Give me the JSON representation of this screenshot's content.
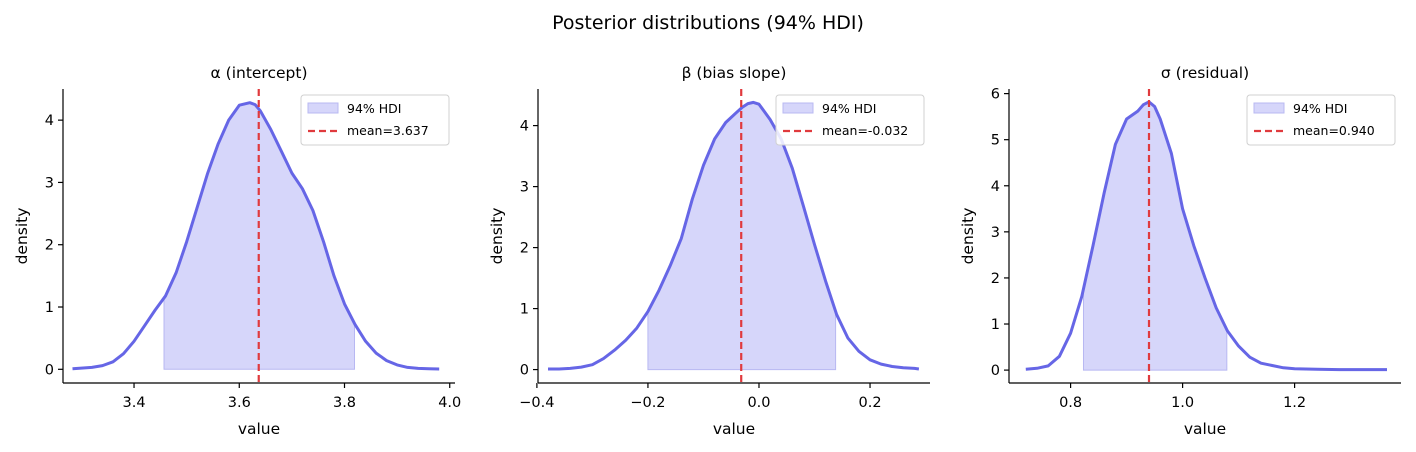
{
  "figure": {
    "title": "Posterior distributions (94% HDI)"
  },
  "colors": {
    "curve": "#6666e6",
    "hdi_fill": "#d6d6fa",
    "hdi_edge": "#b8b8f2",
    "mean_line": "#e03a3e",
    "axis": "#000000"
  },
  "chart_data": [
    {
      "type": "line",
      "title": "α (intercept)",
      "xlabel": "value",
      "ylabel": "density",
      "xlim": [
        3.265,
        4.01
      ],
      "ylim": [
        -0.22,
        4.5
      ],
      "xticks": [
        3.4,
        3.6,
        3.8,
        4.0
      ],
      "xtick_labels": [
        "3.4",
        "3.6",
        "3.8",
        "4.0"
      ],
      "yticks": [
        0,
        1,
        2,
        3,
        4
      ],
      "ytick_labels": [
        "0",
        "1",
        "2",
        "3",
        "4"
      ],
      "hdi": [
        3.457,
        3.819
      ],
      "mean": 3.637,
      "legend": {
        "position": "upper right",
        "entries": [
          "94% HDI",
          "mean=3.637"
        ]
      },
      "series": [
        {
          "x": [
            3.283,
            3.3,
            3.32,
            3.34,
            3.36,
            3.38,
            3.4,
            3.42,
            3.44,
            3.46,
            3.48,
            3.5,
            3.52,
            3.54,
            3.56,
            3.58,
            3.6,
            3.62,
            3.63,
            3.64,
            3.66,
            3.68,
            3.7,
            3.72,
            3.74,
            3.76,
            3.78,
            3.8,
            3.82,
            3.84,
            3.86,
            3.88,
            3.9,
            3.92,
            3.94,
            3.96,
            3.98
          ],
          "y": [
            0.01,
            0.02,
            0.03,
            0.06,
            0.12,
            0.25,
            0.45,
            0.7,
            0.95,
            1.18,
            1.55,
            2.05,
            2.6,
            3.15,
            3.62,
            4.0,
            4.24,
            4.28,
            4.25,
            4.15,
            3.85,
            3.5,
            3.15,
            2.9,
            2.55,
            2.05,
            1.5,
            1.05,
            0.72,
            0.45,
            0.26,
            0.14,
            0.07,
            0.03,
            0.015,
            0.008,
            0.005
          ]
        }
      ]
    },
    {
      "type": "line",
      "title": "β (bias slope)",
      "xlabel": "value",
      "ylabel": "density",
      "xlim": [
        -0.398,
        0.308
      ],
      "ylim": [
        -0.22,
        4.6
      ],
      "xticks": [
        -0.4,
        -0.2,
        0.0,
        0.2
      ],
      "xtick_labels": [
        "−0.4",
        "−0.2",
        "0.0",
        "0.2"
      ],
      "yticks": [
        0,
        1,
        2,
        3,
        4
      ],
      "ytick_labels": [
        "0",
        "1",
        "2",
        "3",
        "4"
      ],
      "hdi": [
        -0.2,
        0.138
      ],
      "mean": -0.032,
      "legend": {
        "position": "upper right",
        "entries": [
          "94% HDI",
          "mean=-0.032"
        ]
      },
      "series": [
        {
          "x": [
            -0.38,
            -0.36,
            -0.34,
            -0.32,
            -0.3,
            -0.28,
            -0.26,
            -0.24,
            -0.22,
            -0.2,
            -0.18,
            -0.16,
            -0.14,
            -0.12,
            -0.1,
            -0.08,
            -0.06,
            -0.04,
            -0.03,
            -0.02,
            -0.01,
            0.0,
            0.02,
            0.04,
            0.06,
            0.08,
            0.1,
            0.12,
            0.14,
            0.16,
            0.18,
            0.2,
            0.22,
            0.24,
            0.26,
            0.28,
            0.288
          ],
          "y": [
            0.01,
            0.01,
            0.02,
            0.04,
            0.08,
            0.18,
            0.32,
            0.48,
            0.68,
            0.95,
            1.3,
            1.7,
            2.15,
            2.8,
            3.35,
            3.78,
            4.05,
            4.22,
            4.3,
            4.36,
            4.38,
            4.35,
            4.1,
            3.78,
            3.3,
            2.68,
            2.05,
            1.45,
            0.9,
            0.52,
            0.3,
            0.16,
            0.09,
            0.05,
            0.03,
            0.02,
            0.01
          ]
        }
      ]
    },
    {
      "type": "line",
      "title": "σ (residual)",
      "xlabel": "value",
      "ylabel": "density",
      "xlim": [
        0.69,
        1.39
      ],
      "ylim": [
        -0.28,
        6.1
      ],
      "xticks": [
        0.8,
        1.0,
        1.2
      ],
      "xtick_labels": [
        "0.8",
        "1.0",
        "1.2"
      ],
      "yticks": [
        0,
        1,
        2,
        3,
        4,
        5,
        6
      ],
      "ytick_labels": [
        "0",
        "1",
        "2",
        "3",
        "4",
        "5",
        "6"
      ],
      "hdi": [
        0.823,
        1.079
      ],
      "mean": 0.94,
      "legend": {
        "position": "upper right",
        "entries": [
          "94% HDI",
          "mean=0.940"
        ]
      },
      "series": [
        {
          "x": [
            0.72,
            0.74,
            0.76,
            0.78,
            0.8,
            0.82,
            0.84,
            0.86,
            0.88,
            0.9,
            0.92,
            0.93,
            0.94,
            0.95,
            0.96,
            0.98,
            1.0,
            1.02,
            1.04,
            1.06,
            1.08,
            1.1,
            1.12,
            1.14,
            1.16,
            1.18,
            1.2,
            1.24,
            1.28,
            1.32,
            1.365
          ],
          "y": [
            0.02,
            0.04,
            0.09,
            0.3,
            0.8,
            1.6,
            2.7,
            3.85,
            4.9,
            5.45,
            5.62,
            5.76,
            5.82,
            5.72,
            5.45,
            4.7,
            3.5,
            2.7,
            2.0,
            1.35,
            0.85,
            0.52,
            0.28,
            0.15,
            0.1,
            0.05,
            0.03,
            0.02,
            0.01,
            0.01,
            0.01
          ]
        }
      ]
    }
  ]
}
